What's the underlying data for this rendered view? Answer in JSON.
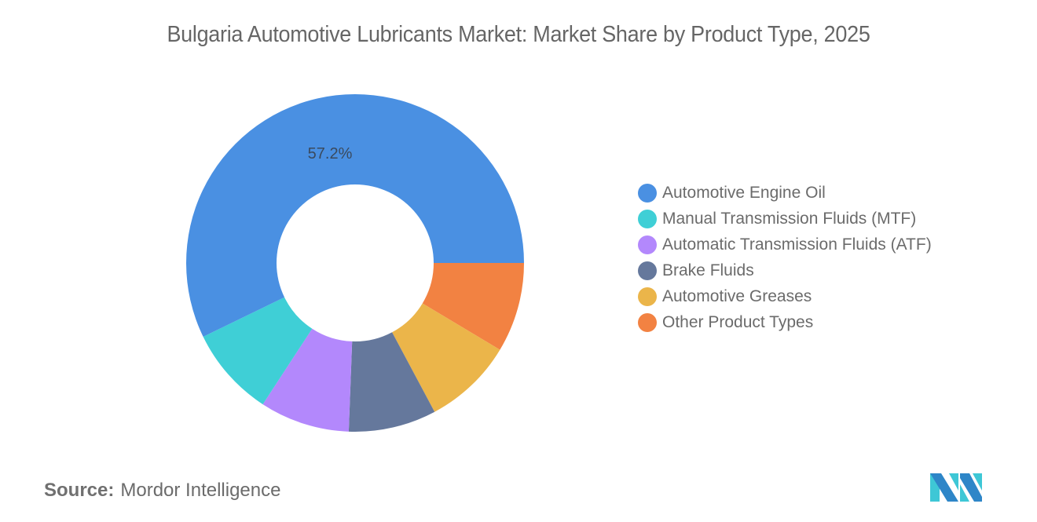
{
  "title": "Bulgaria Automotive Lubricants Market: Market Share by Product Type, 2025",
  "source": {
    "label": "Source:",
    "value": "Mordor Intelligence"
  },
  "logo": {
    "name": "mordor-intelligence-logo",
    "colors": [
      "#2e86c8",
      "#3ec7d6"
    ]
  },
  "chart_data": {
    "type": "pie",
    "variant": "donut",
    "title": "Bulgaria Automotive Lubricants Market: Market Share by Product Type, 2025",
    "categories": [
      "Automotive Engine Oil",
      "Manual Transmission Fluids (MTF)",
      "Automatic Transmission Fluids (ATF)",
      "Brake Fluids",
      "Automotive Greases",
      "Other Product Types"
    ],
    "values": [
      57.2,
      8.6,
      8.6,
      8.4,
      8.6,
      8.6
    ],
    "unit": "%",
    "colors": [
      "#4a90e2",
      "#3fcfd6",
      "#b388fc",
      "#65789c",
      "#ebb54a",
      "#f28242"
    ],
    "data_labels": [
      {
        "category": "Automotive Engine Oil",
        "text": "57.2%"
      }
    ],
    "legend_position": "right",
    "grid": false
  },
  "legend": {
    "items": [
      {
        "label": "Automotive Engine Oil",
        "color": "#4a90e2"
      },
      {
        "label": "Manual Transmission Fluids (MTF)",
        "color": "#3fcfd6"
      },
      {
        "label": "Automatic Transmission Fluids (ATF)",
        "color": "#b388fc"
      },
      {
        "label": "Brake Fluids",
        "color": "#65789c"
      },
      {
        "label": "Automotive Greases",
        "color": "#ebb54a"
      },
      {
        "label": "Other Product Types",
        "color": "#f28242"
      }
    ]
  },
  "data_label": "57.2%"
}
